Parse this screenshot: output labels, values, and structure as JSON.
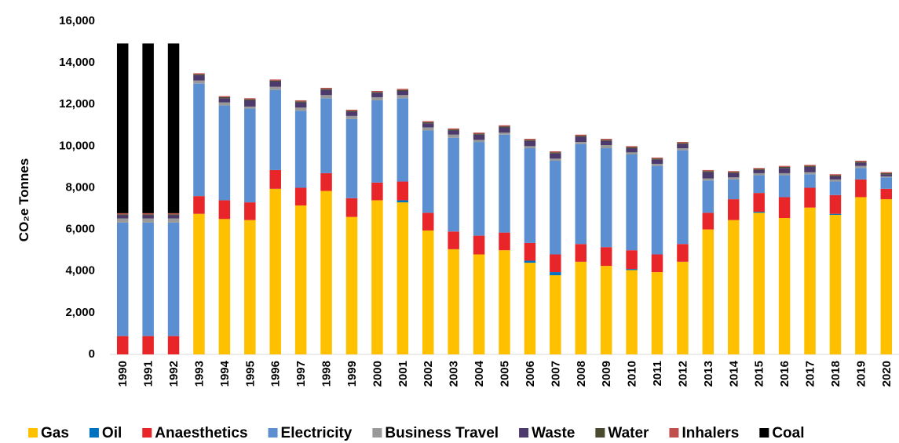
{
  "chart_data": {
    "type": "stacked_bar",
    "y_label": "CO₂e Tonnes",
    "categories": [
      "1990",
      "1991",
      "1992",
      "1993",
      "1994",
      "1995",
      "1996",
      "1997",
      "1998",
      "1999",
      "2000",
      "2001",
      "2002",
      "2003",
      "2004",
      "2005",
      "2006",
      "2007",
      "2008",
      "2009",
      "2010",
      "2011",
      "2012",
      "2013",
      "2014",
      "2015",
      "2016",
      "2017",
      "2018",
      "2019",
      "2020"
    ],
    "ylim": [
      0,
      16000
    ],
    "yticks": [
      0,
      {
        "value": 2000,
        "label": "2,000"
      },
      {
        "value": 4000,
        "label": "4,000"
      },
      {
        "value": 6000,
        "label": "6,000"
      },
      {
        "value": 8000,
        "label": "8,000"
      },
      {
        "value": 10000,
        "label": "10,000"
      },
      {
        "value": 12000,
        "label": "12,000"
      },
      {
        "value": 14000,
        "label": "14,000"
      },
      {
        "value": 16000,
        "label": "16,000"
      }
    ],
    "grid": false,
    "legend": "bottom",
    "series": [
      {
        "name": "Gas",
        "color": "#FFC000",
        "values": [
          0,
          0,
          0,
          6750,
          6500,
          6450,
          7950,
          7150,
          7850,
          6600,
          7400,
          7300,
          5950,
          5050,
          4800,
          5000,
          4400,
          3800,
          4450,
          4250,
          4050,
          3950,
          4450,
          6000,
          6450,
          6800,
          6550,
          7050,
          6700,
          7550,
          7450
        ]
      },
      {
        "name": "Oil",
        "color": "#0070C0",
        "values": [
          0,
          0,
          0,
          0,
          0,
          0,
          0,
          0,
          0,
          0,
          0,
          100,
          0,
          0,
          0,
          0,
          100,
          150,
          0,
          0,
          50,
          0,
          0,
          0,
          0,
          50,
          0,
          0,
          50,
          0,
          0
        ]
      },
      {
        "name": "Anaesthetics",
        "color": "#E8262A",
        "values": [
          880,
          880,
          880,
          850,
          900,
          850,
          900,
          850,
          850,
          900,
          850,
          900,
          850,
          850,
          900,
          850,
          850,
          850,
          850,
          900,
          900,
          850,
          850,
          800,
          1000,
          900,
          1000,
          950,
          900,
          850,
          500
        ]
      },
      {
        "name": "Electricity",
        "color": "#5B8FD2",
        "values": [
          5450,
          5450,
          5450,
          5400,
          4550,
          4500,
          3850,
          3700,
          3600,
          3800,
          3950,
          4000,
          3950,
          4500,
          4500,
          4700,
          4550,
          4500,
          4800,
          4750,
          4600,
          4250,
          4500,
          1550,
          950,
          850,
          1050,
          650,
          650,
          550,
          550
        ]
      },
      {
        "name": "Business Travel",
        "color": "#999999",
        "values": [
          200,
          200,
          200,
          150,
          150,
          100,
          150,
          150,
          150,
          150,
          150,
          150,
          150,
          150,
          100,
          100,
          100,
          100,
          100,
          150,
          100,
          100,
          100,
          100,
          100,
          100,
          100,
          100,
          100,
          100,
          50
        ]
      },
      {
        "name": "Waste",
        "color": "#4B3A6B",
        "values": [
          150,
          150,
          150,
          250,
          200,
          300,
          250,
          250,
          250,
          200,
          200,
          200,
          200,
          200,
          250,
          250,
          250,
          250,
          250,
          200,
          200,
          200,
          200,
          300,
          200,
          150,
          250,
          250,
          150,
          150,
          100
        ]
      },
      {
        "name": "Water",
        "color": "#4A4A30",
        "values": [
          50,
          50,
          50,
          50,
          50,
          50,
          50,
          50,
          50,
          50,
          50,
          50,
          50,
          50,
          50,
          50,
          50,
          50,
          50,
          50,
          50,
          50,
          50,
          50,
          50,
          50,
          50,
          50,
          50,
          50,
          50
        ]
      },
      {
        "name": "Inhalers",
        "color": "#C0504D",
        "values": [
          50,
          50,
          50,
          50,
          50,
          50,
          50,
          50,
          50,
          50,
          50,
          50,
          50,
          50,
          50,
          50,
          50,
          50,
          50,
          50,
          50,
          50,
          50,
          50,
          50,
          50,
          50,
          50,
          50,
          50,
          50
        ]
      },
      {
        "name": "Coal",
        "color": "#000000",
        "values": [
          8150,
          8150,
          8150,
          0,
          0,
          0,
          0,
          0,
          0,
          0,
          0,
          0,
          0,
          0,
          0,
          0,
          0,
          0,
          0,
          0,
          0,
          0,
          0,
          0,
          0,
          0,
          0,
          0,
          0,
          0,
          0
        ]
      }
    ]
  }
}
